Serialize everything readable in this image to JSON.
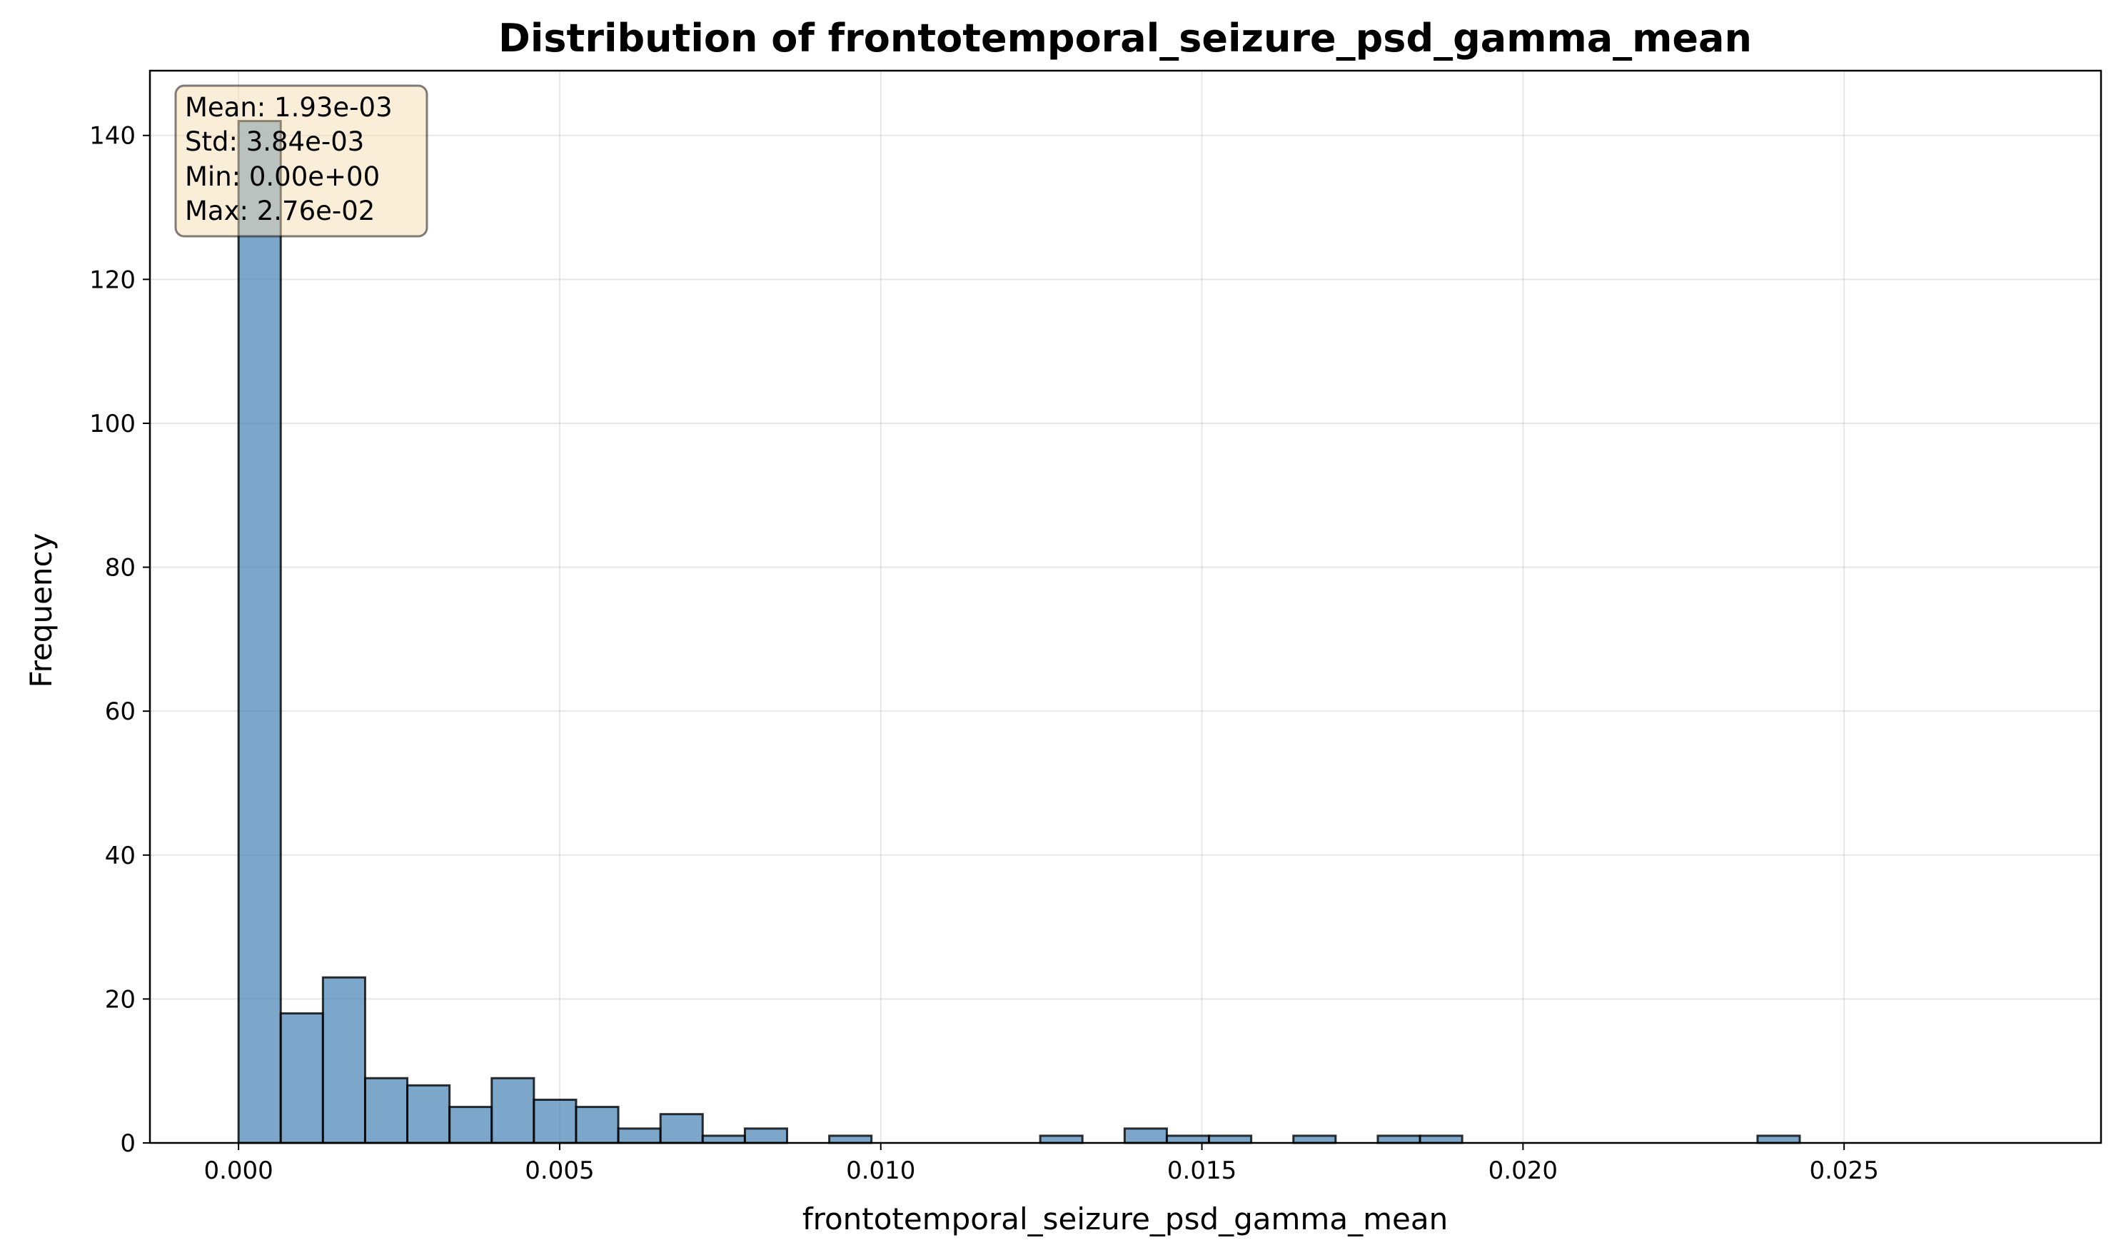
{
  "chart_data": {
    "type": "bar",
    "title": "Distribution of frontotemporal_seizure_psd_gamma_mean",
    "xlabel": "frontotemporal_seizure_psd_gamma_mean",
    "ylabel": "Frequency",
    "xlim": [
      -0.00138,
      0.029
    ],
    "ylim": [
      0,
      149
    ],
    "xticks": [
      0.0,
      0.005,
      0.01,
      0.015,
      0.02,
      0.025
    ],
    "xtick_labels": [
      "0.000",
      "0.005",
      "0.010",
      "0.015",
      "0.020",
      "0.025"
    ],
    "yticks": [
      0,
      20,
      40,
      60,
      80,
      100,
      120,
      140
    ],
    "ytick_labels": [
      "0",
      "20",
      "40",
      "60",
      "80",
      "100",
      "120",
      "140"
    ],
    "grid": true,
    "bin_start": 0.0,
    "bin_width": 0.000657,
    "values": [
      142,
      18,
      23,
      9,
      8,
      5,
      9,
      6,
      5,
      2,
      4,
      1,
      2,
      0,
      1,
      0,
      0,
      0,
      0,
      1,
      0,
      2,
      1,
      1,
      0,
      1,
      0,
      1,
      1,
      0,
      0,
      0,
      0,
      0,
      0,
      0,
      1,
      0,
      0,
      0,
      0,
      0
    ],
    "bar_color": "#4682b4",
    "stats_box": {
      "mean": "Mean: 1.93e-03",
      "std": "Std: 3.84e-03",
      "min": "Min: 0.00e+00",
      "max": "Max: 2.76e-02",
      "placement": "top-left"
    }
  }
}
